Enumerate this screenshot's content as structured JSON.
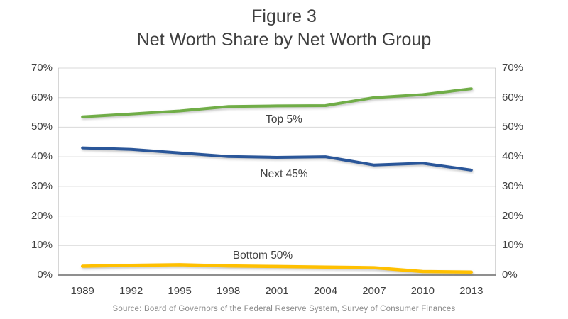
{
  "title": {
    "line1": "Figure 3",
    "line2": "Net Worth Share by Net Worth Group"
  },
  "source": "Source: Board of Governors of the Federal Reserve  System, Survey of Consumer Finances",
  "chart_data": {
    "type": "line",
    "title": "Figure 3 — Net Worth Share by Net Worth Group",
    "categories": [
      "1989",
      "1992",
      "1995",
      "1998",
      "2001",
      "2004",
      "2007",
      "2010",
      "2013"
    ],
    "series": [
      {
        "name": "Top 5%",
        "color": "#70AD47",
        "values": [
          53.5,
          54.5,
          55.5,
          57.0,
          57.2,
          57.3,
          60.0,
          61.0,
          63.0
        ]
      },
      {
        "name": "Next 45%",
        "color": "#2A5699",
        "values": [
          43.0,
          42.5,
          41.3,
          40.1,
          39.8,
          40.0,
          37.2,
          37.8,
          35.5
        ]
      },
      {
        "name": "Bottom 50%",
        "color": "#FFC000",
        "values": [
          3.0,
          3.3,
          3.5,
          3.1,
          2.9,
          2.7,
          2.5,
          1.2,
          1.0
        ]
      }
    ],
    "xlabel": "",
    "ylabel": "",
    "ylim": [
      0,
      70
    ],
    "ytick_step": 10,
    "yticks": [
      "0%",
      "10%",
      "20%",
      "30%",
      "40%",
      "50%",
      "60%",
      "70%"
    ],
    "grid": true,
    "legend": "inline-labels",
    "axis_colors": {
      "gridline": "#D9D9D9",
      "side_border": "#BFBFBF",
      "bottom_axis": "#7F7F7F",
      "tick_text": "#404040"
    }
  }
}
